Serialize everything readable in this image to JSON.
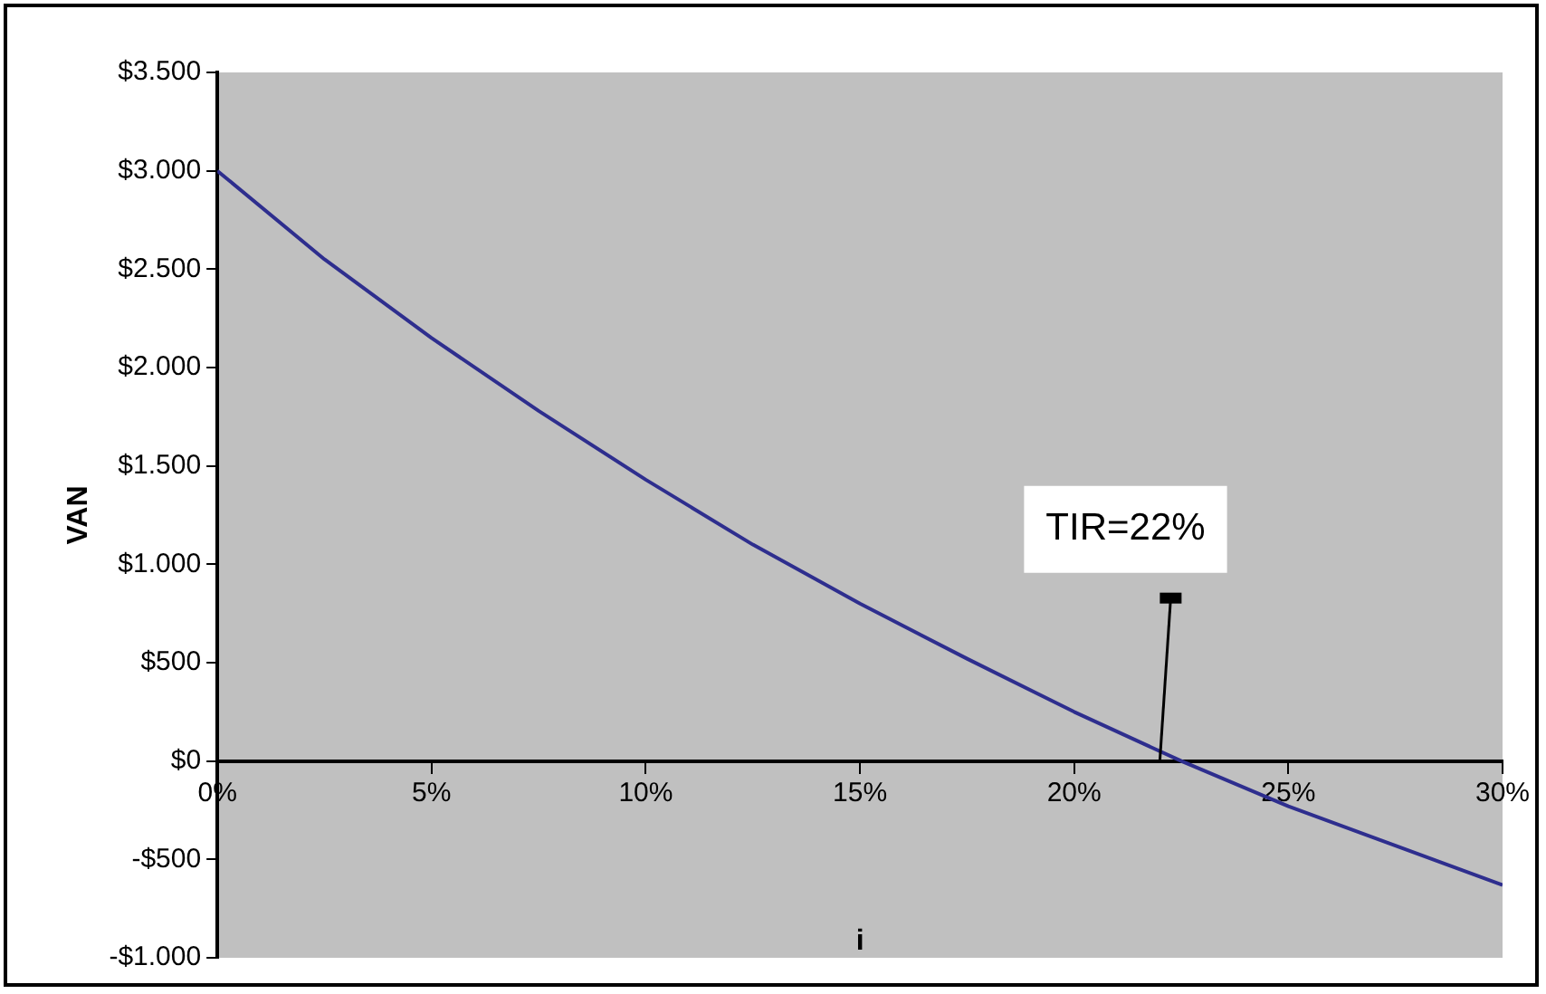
{
  "chart_data": {
    "type": "line",
    "xlabel": "i",
    "ylabel": "VAN",
    "x": [
      0,
      2.5,
      5,
      7.5,
      10,
      12.5,
      15,
      17.5,
      20,
      22.5,
      25,
      27.5,
      30
    ],
    "series": [
      {
        "color": "#2e2e8e",
        "values": [
          3000,
          2550,
          2150,
          1780,
          1430,
          1100,
          800,
          520,
          250,
          0,
          -230,
          -430,
          -630
        ]
      }
    ],
    "xlim": [
      0,
      30
    ],
    "xticks": [
      {
        "value": 0,
        "label": "0%"
      },
      {
        "value": 5,
        "label": "5%"
      },
      {
        "value": 10,
        "label": "10%"
      },
      {
        "value": 15,
        "label": "15%"
      },
      {
        "value": 20,
        "label": "20%"
      },
      {
        "value": 25,
        "label": "25%"
      },
      {
        "value": 30,
        "label": "30%"
      }
    ],
    "ylim": [
      -1000,
      3500
    ],
    "yticks": [
      {
        "value": -1000,
        "label": "-$1.000"
      },
      {
        "value": -500,
        "label": "-$500"
      },
      {
        "value": 0,
        "label": "$0"
      },
      {
        "value": 500,
        "label": "$500"
      },
      {
        "value": 1000,
        "label": "$1.000"
      },
      {
        "value": 1500,
        "label": "$1.500"
      },
      {
        "value": 2000,
        "label": "$2.000"
      },
      {
        "value": 2500,
        "label": "$2.500"
      },
      {
        "value": 3000,
        "label": "$3.000"
      },
      {
        "value": 3500,
        "label": "$3.500"
      }
    ],
    "annotations": [
      {
        "text": "TIR=22%",
        "x": 22,
        "y": 0
      }
    ],
    "grid": false,
    "legend": false,
    "marker": "none",
    "line_style": "solid"
  }
}
